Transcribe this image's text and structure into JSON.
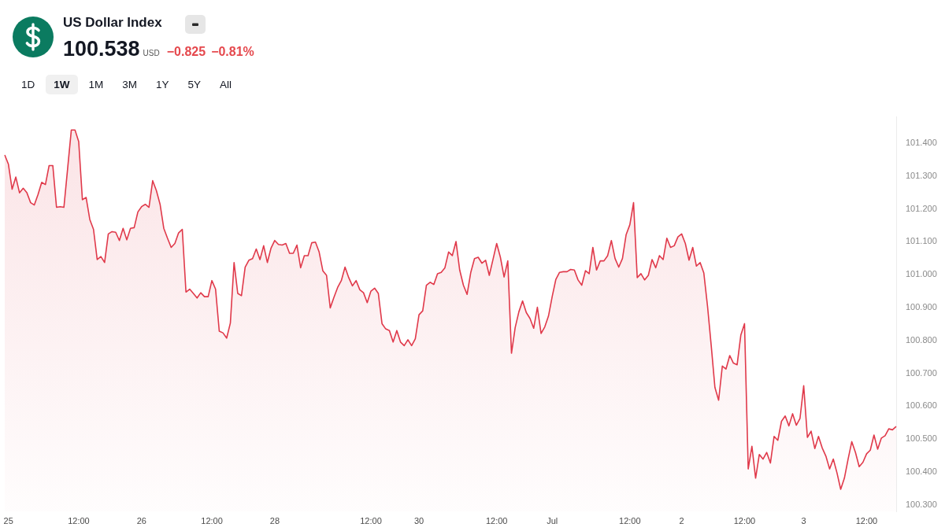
{
  "chart_data": {
    "type": "area",
    "title": "US Dollar Index",
    "subtitle": "100.538",
    "annotations": [
      "USD",
      "−0.825",
      "−0.81%",
      "1D",
      "1W",
      "1M",
      "3M",
      "1Y",
      "5Y",
      "All"
    ],
    "color": "#e0394a",
    "ylim": [
      100.28,
      101.48
    ],
    "yticks": [
      {
        "value": 100.3,
        "label": "100.300"
      },
      {
        "value": 100.4,
        "label": "100.400"
      },
      {
        "value": 100.5,
        "label": "100.500"
      },
      {
        "value": 100.6,
        "label": "100.600"
      },
      {
        "value": 100.7,
        "label": "100.700"
      },
      {
        "value": 100.8,
        "label": "100.800"
      },
      {
        "value": 100.9,
        "label": "100.900"
      },
      {
        "value": 101.0,
        "label": "101.000"
      },
      {
        "value": 101.1,
        "label": "101.100"
      },
      {
        "value": 101.2,
        "label": "101.200"
      },
      {
        "value": 101.3,
        "label": "101.300"
      },
      {
        "value": 101.4,
        "label": "101.400"
      }
    ],
    "categories": [
      null,
      "25",
      null,
      null,
      null,
      null,
      null,
      null,
      null,
      null,
      null,
      null,
      null,
      null,
      null,
      null,
      null,
      null,
      null,
      null,
      "12:00",
      null,
      null,
      null,
      null,
      null,
      null,
      null,
      null,
      null,
      null,
      null,
      null,
      null,
      null,
      null,
      null,
      "26",
      null,
      null,
      null,
      null,
      null,
      null,
      null,
      null,
      null,
      null,
      null,
      null,
      null,
      null,
      null,
      null,
      null,
      null,
      "12:00",
      null,
      null,
      null,
      null,
      null,
      null,
      null,
      null,
      null,
      null,
      null,
      null,
      null,
      null,
      null,
      null,
      "28",
      null,
      null,
      null,
      null,
      null,
      null,
      null,
      null,
      null,
      null,
      null,
      null,
      null,
      null,
      null,
      null,
      null,
      null,
      null,
      null,
      null,
      null,
      null,
      null,
      null,
      "12:00",
      null,
      null,
      null,
      null,
      null,
      null,
      null,
      null,
      null,
      null,
      null,
      null,
      "30",
      null,
      null,
      null,
      null,
      null,
      null,
      null,
      null,
      null,
      null,
      null,
      null,
      null,
      null,
      null,
      null,
      null,
      null,
      null,
      null,
      "12:00",
      null,
      null,
      null,
      null,
      null,
      null,
      null,
      null,
      null,
      null,
      null,
      null,
      null,
      null,
      "Jul",
      null,
      null,
      null,
      null,
      null,
      null,
      null,
      null,
      null,
      null,
      null,
      null,
      null,
      null,
      null,
      null,
      null,
      null,
      null,
      null,
      "12:00",
      null,
      null,
      null,
      null,
      null,
      null,
      null,
      null,
      null,
      null,
      null,
      null,
      null,
      "2",
      null,
      null,
      null,
      null,
      null,
      null,
      null,
      null,
      null,
      null,
      null,
      null,
      null,
      null,
      null,
      null,
      "12:00",
      null,
      null,
      null,
      null,
      null,
      null,
      null,
      null,
      null,
      null,
      null,
      null,
      null,
      null,
      null,
      "3",
      null,
      null,
      null,
      null,
      null,
      null,
      null,
      null,
      null,
      null,
      null,
      null,
      null,
      null,
      null,
      null,
      "12:00",
      null,
      null,
      null,
      null,
      null,
      null,
      null,
      null
    ],
    "values": [
      101.364,
      101.336,
      101.26,
      101.297,
      101.249,
      101.263,
      101.249,
      101.219,
      101.212,
      101.244,
      101.281,
      101.274,
      101.332,
      101.332,
      101.205,
      101.207,
      101.205,
      101.322,
      101.44,
      101.44,
      101.405,
      101.228,
      101.235,
      101.168,
      101.138,
      101.046,
      101.055,
      101.037,
      101.124,
      101.131,
      101.129,
      101.104,
      101.141,
      101.106,
      101.141,
      101.143,
      101.191,
      101.207,
      101.214,
      101.205,
      101.286,
      101.256,
      101.214,
      101.141,
      101.111,
      101.083,
      101.095,
      101.127,
      101.138,
      100.947,
      100.956,
      100.943,
      100.929,
      100.945,
      100.933,
      100.933,
      100.982,
      100.956,
      100.828,
      100.823,
      100.807,
      100.853,
      101.037,
      100.943,
      100.936,
      101.023,
      101.044,
      101.049,
      101.078,
      101.046,
      101.088,
      101.037,
      101.081,
      101.104,
      101.092,
      101.09,
      101.095,
      101.065,
      101.065,
      101.09,
      101.021,
      101.058,
      101.058,
      101.097,
      101.099,
      101.069,
      101.012,
      100.998,
      100.899,
      100.931,
      100.961,
      100.982,
      101.023,
      100.991,
      100.966,
      100.982,
      100.954,
      100.945,
      100.915,
      100.95,
      100.959,
      100.943,
      100.851,
      100.835,
      100.83,
      100.795,
      100.83,
      100.795,
      100.784,
      100.802,
      100.784,
      100.805,
      100.878,
      100.89,
      100.968,
      100.977,
      100.97,
      101.003,
      101.007,
      101.021,
      101.069,
      101.058,
      101.101,
      101.014,
      100.968,
      100.94,
      101.007,
      101.049,
      101.053,
      101.035,
      101.044,
      100.998,
      101.046,
      101.095,
      101.053,
      100.993,
      101.042,
      100.761,
      100.839,
      100.887,
      100.92,
      100.885,
      100.867,
      100.837,
      100.901,
      100.821,
      100.841,
      100.874,
      100.933,
      100.986,
      101.007,
      101.009,
      101.009,
      101.016,
      101.014,
      100.984,
      100.968,
      101.012,
      101.003,
      101.083,
      101.014,
      101.042,
      101.042,
      101.058,
      101.104,
      101.049,
      101.023,
      101.049,
      101.122,
      101.152,
      101.219,
      100.991,
      101.003,
      100.984,
      100.998,
      101.046,
      101.021,
      101.058,
      101.046,
      101.111,
      101.083,
      101.088,
      101.115,
      101.124,
      101.095,
      101.044,
      101.083,
      101.026,
      101.037,
      101.005,
      100.904,
      100.784,
      100.657,
      100.618,
      100.722,
      100.713,
      100.754,
      100.731,
      100.726,
      100.816,
      100.851,
      100.409,
      100.478,
      100.381,
      100.453,
      100.439,
      100.459,
      100.427,
      100.508,
      100.496,
      100.554,
      100.57,
      100.54,
      100.577,
      100.542,
      100.563,
      100.662,
      100.505,
      100.524,
      100.471,
      100.508,
      100.473,
      100.448,
      100.409,
      100.439,
      100.397,
      100.347,
      100.381,
      100.439,
      100.492,
      100.459,
      100.416,
      100.429,
      100.455,
      100.466,
      100.512,
      100.469,
      100.503,
      100.51,
      100.531,
      100.528,
      100.538
    ]
  }
}
